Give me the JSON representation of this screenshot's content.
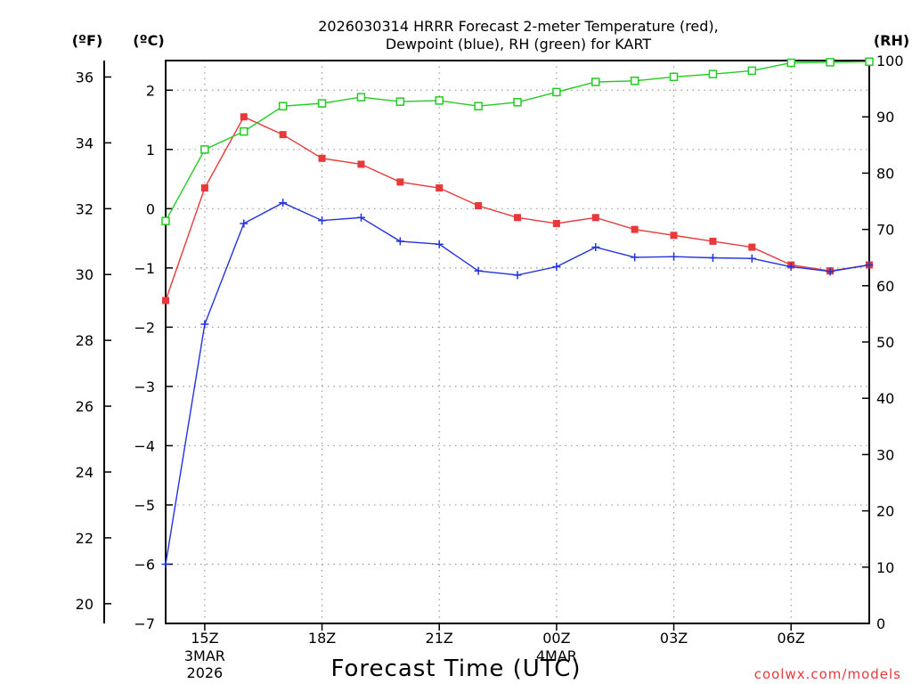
{
  "chart_data": {
    "type": "line",
    "title_line1": "2026030314 HRRR Forecast 2-meter Temperature (red),",
    "title_line2": "Dewpoint (blue), RH (green) for KART",
    "xlabel": "Forecast Time (UTC)",
    "credit": "coolwx.com/models",
    "units": {
      "fahrenheit": "(ºF)",
      "celsius": "(ºC)",
      "rh": "(RH)"
    },
    "hours": [
      14,
      15,
      16,
      17,
      18,
      19,
      20,
      21,
      22,
      23,
      24,
      25,
      26,
      27,
      28,
      29,
      30,
      31,
      32
    ],
    "x_range": [
      14,
      32
    ],
    "x_ticks": [
      {
        "hour": 15,
        "label": "15Z",
        "sub1": "3MAR",
        "sub2": "2026"
      },
      {
        "hour": 18,
        "label": "18Z",
        "sub1": "",
        "sub2": ""
      },
      {
        "hour": 21,
        "label": "21Z",
        "sub1": "",
        "sub2": ""
      },
      {
        "hour": 24,
        "label": "00Z",
        "sub1": "4MAR",
        "sub2": ""
      },
      {
        "hour": 27,
        "label": "03Z",
        "sub1": "",
        "sub2": ""
      },
      {
        "hour": 30,
        "label": "06Z",
        "sub1": "",
        "sub2": ""
      }
    ],
    "ylim_celsius": [
      -7,
      2.5
    ],
    "yticks_celsius": [
      "2",
      "1",
      "0",
      "−1",
      "−2",
      "−3",
      "−4",
      "−5",
      "−6",
      "−7"
    ],
    "yticks_fahrenheit": [
      "36",
      "34",
      "32",
      "30",
      "28",
      "26",
      "24",
      "22",
      "20"
    ],
    "ylim_rh": [
      0,
      100
    ],
    "yticks_rh": [
      "100",
      "90",
      "80",
      "70",
      "60",
      "50",
      "40",
      "30",
      "20",
      "10",
      "0"
    ],
    "series": [
      {
        "name": "Temperature",
        "unit": "C",
        "color": "#e8393a",
        "marker": "filled-square",
        "values": [
          -1.55,
          0.35,
          1.55,
          1.25,
          0.85,
          0.75,
          0.45,
          0.35,
          0.05,
          -0.15,
          -0.25,
          -0.15,
          -0.35,
          -0.45,
          -0.55,
          -0.65,
          -0.95,
          -1.05,
          -0.95
        ]
      },
      {
        "name": "Dewpoint",
        "unit": "C",
        "color": "#2233dd",
        "marker": "plus",
        "values": [
          -6.0,
          -1.95,
          -0.25,
          0.1,
          -0.2,
          -0.15,
          -0.55,
          -0.6,
          -1.05,
          -1.12,
          -0.98,
          -0.65,
          -0.82,
          -0.81,
          -0.83,
          -0.84,
          -0.98,
          -1.06,
          -0.95
        ]
      },
      {
        "name": "RH",
        "unit": "%",
        "color": "#22cc22",
        "marker": "open-square",
        "values": [
          71.5,
          84.2,
          87.4,
          91.9,
          92.4,
          93.5,
          92.7,
          92.9,
          91.9,
          92.6,
          94.4,
          96.2,
          96.4,
          97.1,
          97.6,
          98.2,
          99.6,
          99.7,
          99.8
        ]
      }
    ],
    "grid": true
  }
}
